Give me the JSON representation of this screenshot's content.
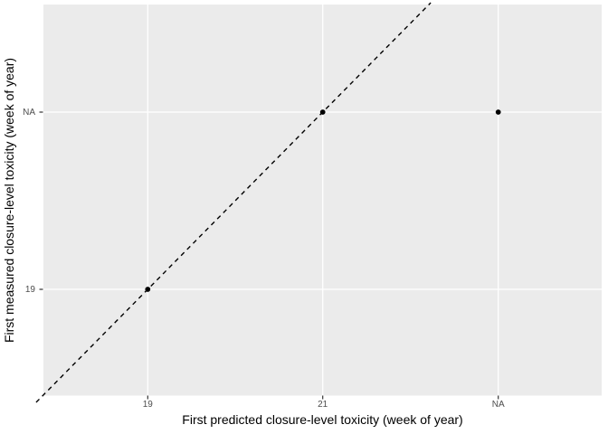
{
  "chart_data": {
    "type": "scatter",
    "title": "",
    "xlabel": "First predicted closure-level toxicity (week of year)",
    "ylabel": "First measured closure-level toxicity (week of year)",
    "x_axis": {
      "type": "discrete",
      "tick_labels": [
        "19",
        "21",
        "NA"
      ]
    },
    "y_axis": {
      "type": "discrete",
      "tick_labels": [
        "19",
        "NA"
      ]
    },
    "points": [
      {
        "x": "19",
        "y": "19"
      },
      {
        "x": "21",
        "y": "NA"
      },
      {
        "x": "NA",
        "y": "NA"
      }
    ],
    "reference_line": {
      "type": "identity",
      "style": "dashed",
      "color": "#000000"
    },
    "legend": "none",
    "grid": "major-only",
    "colors": {
      "figure_background": "#FFFFFF",
      "panel_background": "#EBEBEB",
      "gridline": "#FFFFFF",
      "point": "#000000",
      "tick_mark": "#333333",
      "tick_label": "#4D4D4D",
      "axis_title": "#000000"
    }
  }
}
